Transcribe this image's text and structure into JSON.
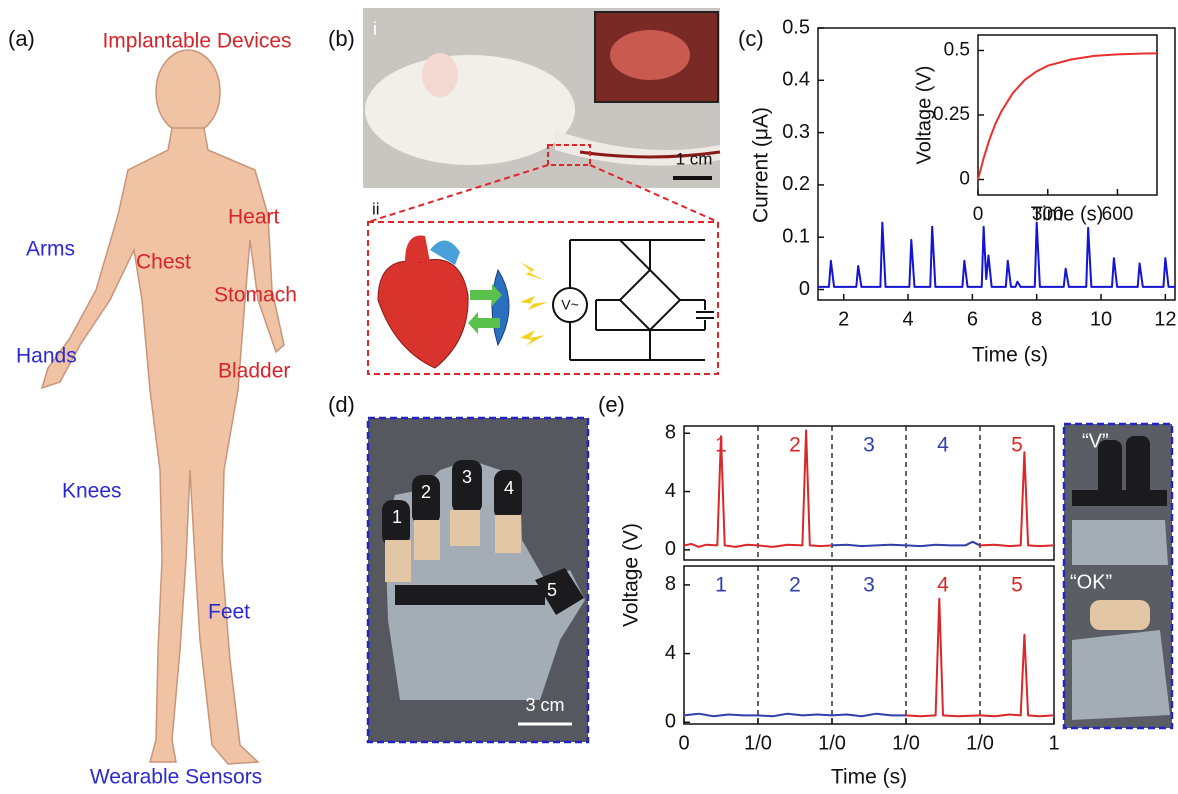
{
  "panel_labels": [
    "(a)",
    "(b)",
    "(c)",
    "(d)",
    "(e)"
  ],
  "panel_a": {
    "title": "Implantable Devices",
    "implant_sites": [
      "Heart",
      "Chest",
      "Stomach",
      "Bladder"
    ],
    "wearable_sites": [
      "Arms",
      "Hands",
      "Knees",
      "Feet"
    ],
    "footer": "Wearable Sensors"
  },
  "panel_b": {
    "sub_labels": [
      "i",
      "ii"
    ],
    "scale_bar": "1 cm",
    "circuit_label": "V~"
  },
  "panel_d": {
    "finger_labels": [
      "1",
      "2",
      "3",
      "4",
      "5"
    ],
    "scale_bar": "3 cm"
  },
  "panel_e": {
    "gesture_labels": [
      "“V”",
      "“OK”"
    ]
  },
  "chart_data": [
    {
      "type": "line",
      "xlabel": "Time (s)",
      "ylabel": "Current (μA)",
      "xlim": [
        1.2,
        12.3
      ],
      "ylim": [
        -0.02,
        0.5
      ],
      "xticks": [
        2,
        4,
        6,
        8,
        10,
        12
      ],
      "yticks": [
        0,
        0.1,
        0.2,
        0.3,
        0.4,
        0.5
      ],
      "series": [
        {
          "color": "#1414d2",
          "x": [
            1.2,
            1.54,
            1.6,
            1.7,
            2.39,
            2.45,
            2.55,
            3.14,
            3.2,
            3.3,
            4.04,
            4.1,
            4.2,
            4.69,
            4.75,
            4.85,
            5.69,
            5.75,
            5.85,
            6.29,
            6.35,
            6.43,
            6.5,
            6.6,
            7.04,
            7.1,
            7.2,
            7.34,
            7.4,
            7.5,
            7.94,
            8.0,
            8.1,
            8.84,
            8.9,
            9.0,
            9.54,
            9.6,
            9.7,
            10.34,
            10.4,
            10.5,
            11.14,
            11.2,
            11.3,
            11.94,
            12.0,
            12.1,
            12.3
          ],
          "values": [
            0.005,
            0.005,
            0.055,
            0.005,
            0.005,
            0.045,
            0.005,
            0.005,
            0.128,
            0.005,
            0.005,
            0.095,
            0.005,
            0.005,
            0.12,
            0.005,
            0.005,
            0.055,
            0.005,
            0.005,
            0.12,
            0.02,
            0.065,
            0.005,
            0.005,
            0.055,
            0.005,
            0.005,
            0.015,
            0.005,
            0.005,
            0.128,
            0.005,
            0.005,
            0.04,
            0.005,
            0.005,
            0.118,
            0.005,
            0.005,
            0.06,
            0.005,
            0.005,
            0.05,
            0.005,
            0.005,
            0.06,
            0.005,
            0.005
          ]
        }
      ]
    },
    {
      "type": "line",
      "xlabel": "Time (s)",
      "ylabel": "Voltage (V)",
      "xlim": [
        0,
        770
      ],
      "ylim": [
        -0.06,
        0.56
      ],
      "xticks": [
        0,
        300,
        600
      ],
      "yticks": [
        0,
        0.25,
        0.5
      ],
      "series": [
        {
          "color": "#e8312f",
          "x": [
            0,
            25,
            50,
            75,
            100,
            150,
            200,
            250,
            300,
            400,
            500,
            600,
            700,
            770
          ],
          "values": [
            0,
            0.085,
            0.157,
            0.216,
            0.263,
            0.335,
            0.385,
            0.418,
            0.441,
            0.465,
            0.479,
            0.485,
            0.488,
            0.489
          ]
        }
      ]
    },
    {
      "type": "line",
      "ylabel": "Voltage (V)",
      "xlim": [
        0,
        5
      ],
      "ylim": [
        -0.7,
        8.5
      ],
      "yticks": [
        0,
        4,
        8
      ],
      "dividers": [
        1,
        2,
        3,
        4
      ],
      "segments": [
        {
          "label": "1",
          "color": "#d8282a",
          "x": [
            0,
            0.1,
            0.2,
            0.3,
            0.45,
            0.5,
            0.55,
            0.7,
            0.85,
            1
          ],
          "values": [
            0.3,
            0.4,
            0.2,
            0.35,
            0.3,
            7.8,
            0.3,
            0.2,
            0.35,
            0.3
          ]
        },
        {
          "label": "2",
          "color": "#d8282a",
          "x": [
            1,
            1.2,
            1.4,
            1.6,
            1.65,
            1.7,
            1.85,
            2
          ],
          "values": [
            0.3,
            0.2,
            0.35,
            0.3,
            8.2,
            0.3,
            0.25,
            0.3
          ]
        },
        {
          "label": "3",
          "color": "#3040a8",
          "x": [
            2,
            2.2,
            2.4,
            2.6,
            2.8,
            3
          ],
          "values": [
            0.3,
            0.35,
            0.25,
            0.3,
            0.35,
            0.3
          ]
        },
        {
          "label": "4",
          "color": "#3040a8",
          "x": [
            3,
            3.2,
            3.4,
            3.6,
            3.8,
            3.9,
            4
          ],
          "values": [
            0.3,
            0.25,
            0.35,
            0.3,
            0.3,
            0.55,
            0.3
          ]
        },
        {
          "label": "5",
          "color": "#d8282a",
          "x": [
            4,
            4.2,
            4.4,
            4.55,
            4.6,
            4.65,
            4.8,
            5
          ],
          "values": [
            0.3,
            0.35,
            0.25,
            0.3,
            6.7,
            0.3,
            0.25,
            0.3
          ]
        }
      ]
    },
    {
      "type": "line",
      "xlabel": "Time (s)",
      "xlim": [
        0,
        5
      ],
      "ylim": [
        -0.1,
        9.1
      ],
      "yticks": [
        0,
        4,
        8
      ],
      "dividers": [
        1,
        2,
        3,
        4
      ],
      "xticks": [
        0,
        {
          "value": 1,
          "label": "1/0"
        },
        {
          "value": 2,
          "label": "1/0"
        },
        {
          "value": 3,
          "label": "1/0"
        },
        {
          "value": 4,
          "label": "1/0"
        },
        {
          "value": 5,
          "label": "1"
        }
      ],
      "segments": [
        {
          "label": "1",
          "color": "#3040a8",
          "x": [
            0,
            0.2,
            0.4,
            0.6,
            0.8,
            1
          ],
          "values": [
            0.4,
            0.5,
            0.35,
            0.45,
            0.4,
            0.4
          ]
        },
        {
          "label": "2",
          "color": "#3040a8",
          "x": [
            1,
            1.2,
            1.4,
            1.6,
            1.8,
            2
          ],
          "values": [
            0.4,
            0.35,
            0.5,
            0.4,
            0.45,
            0.4
          ]
        },
        {
          "label": "3",
          "color": "#3040a8",
          "x": [
            2,
            2.2,
            2.4,
            2.6,
            2.8,
            3
          ],
          "values": [
            0.4,
            0.45,
            0.35,
            0.5,
            0.4,
            0.4
          ]
        },
        {
          "label": "4",
          "color": "#d8282a",
          "x": [
            3,
            3.2,
            3.4,
            3.45,
            3.5,
            3.7,
            4
          ],
          "values": [
            0.4,
            0.35,
            0.4,
            7.2,
            0.4,
            0.35,
            0.4
          ]
        },
        {
          "label": "5",
          "color": "#d8282a",
          "x": [
            4,
            4.2,
            4.4,
            4.55,
            4.6,
            4.65,
            4.8,
            5
          ],
          "values": [
            0.4,
            0.35,
            0.45,
            0.4,
            5.1,
            0.4,
            0.35,
            0.4
          ]
        }
      ]
    }
  ]
}
